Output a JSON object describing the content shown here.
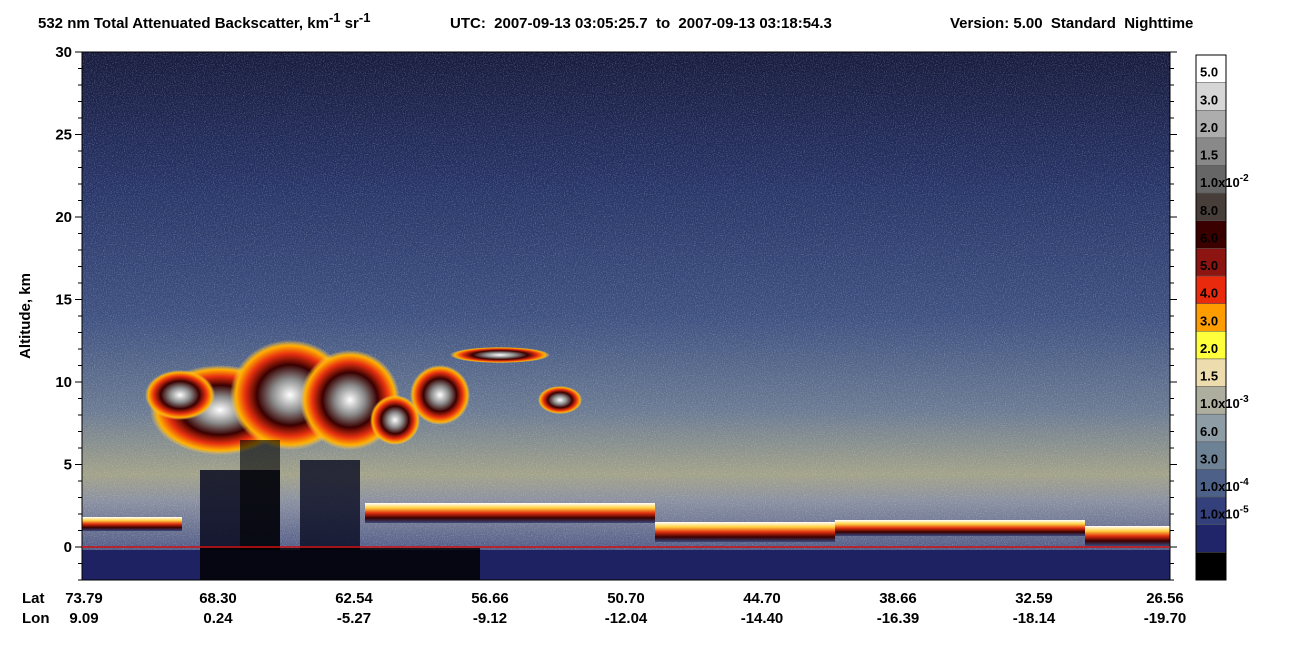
{
  "chart_data": {
    "type": "curtain",
    "title": {
      "measure": "532 nm Total Attenuated Backscatter, km",
      "unit_exp_1": "-1",
      "unit_sr": " sr",
      "unit_exp_2": "-1",
      "utc": "UTC:  2007-09-13 03:05:25.7  to  2007-09-13 03:18:54.3",
      "version": "Version: 5.00  Standard  Nighttime"
    },
    "y_label": "Altitude, km",
    "ylim": [
      -2,
      30
    ],
    "yticks": [
      0,
      5,
      10,
      15,
      20,
      25,
      30
    ],
    "reference_line": {
      "value": 0,
      "color": "#d01010"
    },
    "x_row_labels": [
      "Lat",
      "Lon"
    ],
    "lat": [
      "73.79",
      "68.30",
      "62.54",
      "56.66",
      "50.70",
      "44.70",
      "38.66",
      "32.59",
      "26.56"
    ],
    "lon": [
      "9.09",
      "0.24",
      "-5.27",
      "-9.12",
      "-12.04",
      "-14.40",
      "-16.39",
      "-18.14",
      "-19.70"
    ],
    "colorbar": {
      "colors": [
        "#ffffff",
        "#d6d6d6",
        "#adadad",
        "#898989",
        "#666666",
        "#473d39",
        "#3a0000",
        "#8c1512",
        "#ea2a0c",
        "#ff9c00",
        "#ffff3c",
        "#eddcae",
        "#aeae9e",
        "#8e9ca6",
        "#6e8296",
        "#4c6088",
        "#34407c",
        "#202468",
        "#000000"
      ],
      "labels": [
        {
          "text": "5.0"
        },
        {
          "text": "3.0"
        },
        {
          "text": "2.0"
        },
        {
          "text": "1.5"
        },
        {
          "text": "1.0x10",
          "sup": "-2"
        },
        {
          "text": "8.0"
        },
        {
          "text": "6.0"
        },
        {
          "text": "5.0"
        },
        {
          "text": "4.0"
        },
        {
          "text": "3.0"
        },
        {
          "text": "2.0"
        },
        {
          "text": "1.5"
        },
        {
          "text": "1.0x10",
          "sup": "-3"
        },
        {
          "text": "6.0"
        },
        {
          "text": "3.0"
        },
        {
          "text": "1.0x10",
          "sup": "-4"
        },
        {
          "text": "1.0x10",
          "sup": "-5"
        }
      ]
    }
  }
}
